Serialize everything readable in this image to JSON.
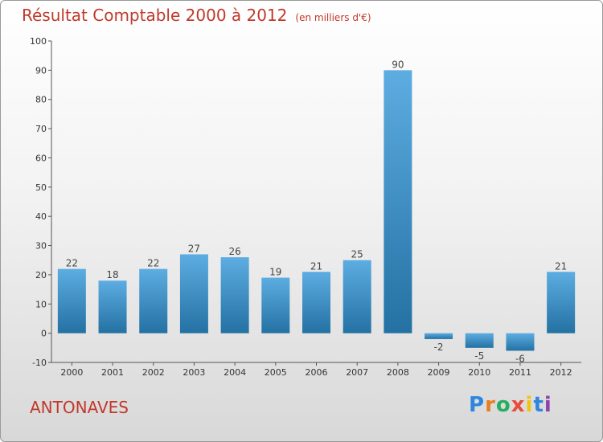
{
  "chart_data": {
    "type": "bar",
    "title": "Résultat Comptable 2000 à 2012",
    "subtitle": "(en milliers d'€)",
    "categories": [
      "2000",
      "2001",
      "2002",
      "2003",
      "2004",
      "2005",
      "2006",
      "2007",
      "2008",
      "2009",
      "2010",
      "2011",
      "2012"
    ],
    "values": [
      22,
      18,
      22,
      27,
      26,
      19,
      21,
      25,
      90,
      -2,
      -5,
      -6,
      21
    ],
    "ylim": [
      -10,
      100
    ],
    "yticks": [
      -10,
      0,
      10,
      20,
      30,
      40,
      50,
      60,
      70,
      80,
      90,
      100
    ],
    "xlabel": "",
    "ylabel": "",
    "grid": false
  },
  "location": "ANTONAVES",
  "logo": {
    "letters": [
      {
        "ch": "P",
        "color": "#2e86de"
      },
      {
        "ch": "r",
        "color": "#e67e22"
      },
      {
        "ch": "o",
        "color": "#27ae60"
      },
      {
        "ch": "x",
        "color": "#e74c3c"
      },
      {
        "ch": "i",
        "color": "#f1c40f"
      },
      {
        "ch": "t",
        "color": "#2e86de"
      },
      {
        "ch": "i",
        "color": "#8e44ad"
      }
    ]
  },
  "colors": {
    "bar_top": "#5dade2",
    "bar_bottom": "#2471a3",
    "title": "#c0392b"
  }
}
